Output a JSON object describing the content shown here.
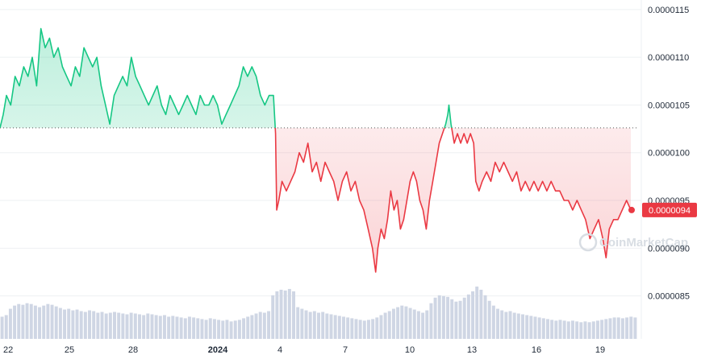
{
  "chart_data": {
    "type": "area",
    "y_ticks": [
      "0.0000115",
      "0.0000110",
      "0.0000105",
      "0.0000100",
      "0.0000095",
      "0.0000090",
      "0.0000085"
    ],
    "y_tick_values": [
      1.15e-05,
      1.1e-05,
      1.05e-05,
      1e-05,
      9.5e-06,
      9e-06,
      8.5e-06
    ],
    "ylim": [
      8.05e-06,
      1.16e-05
    ],
    "x_ticks": [
      {
        "label": "22",
        "day": 0
      },
      {
        "label": "25",
        "day": 3
      },
      {
        "label": "28",
        "day": 6
      },
      {
        "label": "2024",
        "day": 10,
        "bold": true
      },
      {
        "label": "4",
        "day": 13
      },
      {
        "label": "7",
        "day": 16
      },
      {
        "label": "10",
        "day": 19
      },
      {
        "label": "13",
        "day": 22
      },
      {
        "label": "16",
        "day": 25
      },
      {
        "label": "19",
        "day": 28
      }
    ],
    "xlim": [
      0,
      29.6
    ],
    "baseline": 1.026e-05,
    "current_price": 9.4e-06,
    "current_label": "0.0000094",
    "colors": {
      "up": "#16c784",
      "down": "#ea3943",
      "volume": "#cfd6e4",
      "marker": "#ea3943"
    },
    "series": {
      "price": [
        [
          0.0,
          1.026e-05
        ],
        [
          0.15,
          1.04e-05
        ],
        [
          0.3,
          1.06e-05
        ],
        [
          0.5,
          1.05e-05
        ],
        [
          0.7,
          1.08e-05
        ],
        [
          0.9,
          1.07e-05
        ],
        [
          1.1,
          1.09e-05
        ],
        [
          1.3,
          1.08e-05
        ],
        [
          1.5,
          1.1e-05
        ],
        [
          1.7,
          1.07e-05
        ],
        [
          1.9,
          1.13e-05
        ],
        [
          2.1,
          1.11e-05
        ],
        [
          2.3,
          1.12e-05
        ],
        [
          2.5,
          1.1e-05
        ],
        [
          2.7,
          1.11e-05
        ],
        [
          2.9,
          1.09e-05
        ],
        [
          3.1,
          1.08e-05
        ],
        [
          3.3,
          1.07e-05
        ],
        [
          3.5,
          1.09e-05
        ],
        [
          3.7,
          1.08e-05
        ],
        [
          3.9,
          1.11e-05
        ],
        [
          4.1,
          1.1e-05
        ],
        [
          4.3,
          1.09e-05
        ],
        [
          4.5,
          1.1e-05
        ],
        [
          4.7,
          1.07e-05
        ],
        [
          4.9,
          1.05e-05
        ],
        [
          5.1,
          1.03e-05
        ],
        [
          5.3,
          1.06e-05
        ],
        [
          5.5,
          1.07e-05
        ],
        [
          5.7,
          1.08e-05
        ],
        [
          5.9,
          1.07e-05
        ],
        [
          6.1,
          1.1e-05
        ],
        [
          6.3,
          1.08e-05
        ],
        [
          6.5,
          1.07e-05
        ],
        [
          6.7,
          1.06e-05
        ],
        [
          6.9,
          1.05e-05
        ],
        [
          7.1,
          1.06e-05
        ],
        [
          7.3,
          1.07e-05
        ],
        [
          7.5,
          1.05e-05
        ],
        [
          7.7,
          1.04e-05
        ],
        [
          7.9,
          1.06e-05
        ],
        [
          8.1,
          1.05e-05
        ],
        [
          8.3,
          1.04e-05
        ],
        [
          8.5,
          1.05e-05
        ],
        [
          8.7,
          1.06e-05
        ],
        [
          8.9,
          1.05e-05
        ],
        [
          9.1,
          1.04e-05
        ],
        [
          9.3,
          1.06e-05
        ],
        [
          9.5,
          1.05e-05
        ],
        [
          9.7,
          1.05e-05
        ],
        [
          9.9,
          1.06e-05
        ],
        [
          10.1,
          1.05e-05
        ],
        [
          10.3,
          1.03e-05
        ],
        [
          10.5,
          1.04e-05
        ],
        [
          10.7,
          1.05e-05
        ],
        [
          10.9,
          1.06e-05
        ],
        [
          11.1,
          1.07e-05
        ],
        [
          11.3,
          1.09e-05
        ],
        [
          11.5,
          1.08e-05
        ],
        [
          11.7,
          1.09e-05
        ],
        [
          11.9,
          1.08e-05
        ],
        [
          12.1,
          1.06e-05
        ],
        [
          12.3,
          1.05e-05
        ],
        [
          12.5,
          1.06e-05
        ],
        [
          12.7,
          1.06e-05
        ],
        [
          12.8,
          1.02e-05
        ],
        [
          12.85,
          9.4e-06
        ],
        [
          12.95,
          9.5e-06
        ],
        [
          13.1,
          9.7e-06
        ],
        [
          13.3,
          9.6e-06
        ],
        [
          13.5,
          9.7e-06
        ],
        [
          13.7,
          9.8e-06
        ],
        [
          13.9,
          1e-05
        ],
        [
          14.1,
          9.9e-06
        ],
        [
          14.3,
          1.01e-05
        ],
        [
          14.5,
          9.8e-06
        ],
        [
          14.7,
          9.9e-06
        ],
        [
          14.9,
          9.7e-06
        ],
        [
          15.1,
          9.9e-06
        ],
        [
          15.3,
          9.8e-06
        ],
        [
          15.5,
          9.7e-06
        ],
        [
          15.7,
          9.5e-06
        ],
        [
          15.9,
          9.7e-06
        ],
        [
          16.1,
          9.8e-06
        ],
        [
          16.3,
          9.6e-06
        ],
        [
          16.5,
          9.7e-06
        ],
        [
          16.7,
          9.5e-06
        ],
        [
          16.9,
          9.4e-06
        ],
        [
          17.1,
          9.2e-06
        ],
        [
          17.3,
          9e-06
        ],
        [
          17.45,
          8.75e-06
        ],
        [
          17.55,
          9e-06
        ],
        [
          17.7,
          9.2e-06
        ],
        [
          17.85,
          9.1e-06
        ],
        [
          18.0,
          9.3e-06
        ],
        [
          18.15,
          9.6e-06
        ],
        [
          18.3,
          9.4e-06
        ],
        [
          18.45,
          9.5e-06
        ],
        [
          18.6,
          9.2e-06
        ],
        [
          18.75,
          9.3e-06
        ],
        [
          18.9,
          9.5e-06
        ],
        [
          19.05,
          9.7e-06
        ],
        [
          19.2,
          9.8e-06
        ],
        [
          19.35,
          9.7e-06
        ],
        [
          19.5,
          9.5e-06
        ],
        [
          19.65,
          9.4e-06
        ],
        [
          19.8,
          9.2e-06
        ],
        [
          19.95,
          9.5e-06
        ],
        [
          20.1,
          9.7e-06
        ],
        [
          20.25,
          9.9e-06
        ],
        [
          20.4,
          1.01e-05
        ],
        [
          20.55,
          1.02e-05
        ],
        [
          20.7,
          1.03e-05
        ],
        [
          20.8,
          1.04e-05
        ],
        [
          20.85,
          1.05e-05
        ],
        [
          20.95,
          1.03e-05
        ],
        [
          21.1,
          1.01e-05
        ],
        [
          21.25,
          1.02e-05
        ],
        [
          21.4,
          1.01e-05
        ],
        [
          21.55,
          1.02e-05
        ],
        [
          21.7,
          1.01e-05
        ],
        [
          21.85,
          1.02e-05
        ],
        [
          22.0,
          1.01e-05
        ],
        [
          22.1,
          9.7e-06
        ],
        [
          22.25,
          9.6e-06
        ],
        [
          22.4,
          9.7e-06
        ],
        [
          22.6,
          9.8e-06
        ],
        [
          22.8,
          9.7e-06
        ],
        [
          23.0,
          9.9e-06
        ],
        [
          23.2,
          9.8e-06
        ],
        [
          23.4,
          9.9e-06
        ],
        [
          23.6,
          9.8e-06
        ],
        [
          23.8,
          9.7e-06
        ],
        [
          24.0,
          9.8e-06
        ],
        [
          24.2,
          9.6e-06
        ],
        [
          24.4,
          9.7e-06
        ],
        [
          24.6,
          9.6e-06
        ],
        [
          24.8,
          9.7e-06
        ],
        [
          25.0,
          9.6e-06
        ],
        [
          25.2,
          9.7e-06
        ],
        [
          25.4,
          9.6e-06
        ],
        [
          25.6,
          9.7e-06
        ],
        [
          25.8,
          9.6e-06
        ],
        [
          26.0,
          9.6e-06
        ],
        [
          26.2,
          9.5e-06
        ],
        [
          26.4,
          9.5e-06
        ],
        [
          26.6,
          9.4e-06
        ],
        [
          26.8,
          9.5e-06
        ],
        [
          27.0,
          9.4e-06
        ],
        [
          27.2,
          9.3e-06
        ],
        [
          27.4,
          9.1e-06
        ],
        [
          27.6,
          9.2e-06
        ],
        [
          27.8,
          9.3e-06
        ],
        [
          28.0,
          9.1e-06
        ],
        [
          28.15,
          8.9e-06
        ],
        [
          28.3,
          9.2e-06
        ],
        [
          28.5,
          9.3e-06
        ],
        [
          28.7,
          9.3e-06
        ],
        [
          28.9,
          9.4e-06
        ],
        [
          29.1,
          9.5e-06
        ],
        [
          29.3,
          9.4e-06
        ]
      ],
      "volume": [
        28,
        30,
        38,
        42,
        44,
        43,
        45,
        44,
        42,
        40,
        42,
        44,
        43,
        41,
        39,
        37,
        38,
        36,
        37,
        35,
        34,
        36,
        35,
        33,
        34,
        32,
        33,
        34,
        33,
        32,
        31,
        33,
        32,
        31,
        30,
        32,
        31,
        30,
        29,
        30,
        28,
        29,
        28,
        27,
        26,
        28,
        27,
        26,
        25,
        24,
        26,
        25,
        24,
        23,
        24,
        22,
        23,
        24,
        26,
        28,
        30,
        32,
        34,
        33,
        35,
        55,
        60,
        62,
        61,
        63,
        60,
        40,
        38,
        36,
        34,
        35,
        33,
        34,
        32,
        31,
        30,
        29,
        28,
        27,
        26,
        25,
        24,
        23,
        24,
        25,
        27,
        30,
        33,
        35,
        38,
        40,
        42,
        41,
        39,
        37,
        35,
        33,
        36,
        45,
        52,
        55,
        54,
        53,
        50,
        47,
        48,
        52,
        56,
        60,
        66,
        62,
        55,
        48,
        42,
        38,
        36,
        34,
        35,
        33,
        32,
        31,
        30,
        29,
        28,
        27,
        26,
        25,
        24,
        23,
        24,
        23,
        22,
        23,
        22,
        21,
        22,
        21,
        22,
        23,
        24,
        25,
        26,
        27,
        27,
        26,
        27,
        28,
        27
      ]
    }
  },
  "badge": {
    "text": "0.0000094"
  },
  "watermark": {
    "text": "CoinMarketCap"
  }
}
